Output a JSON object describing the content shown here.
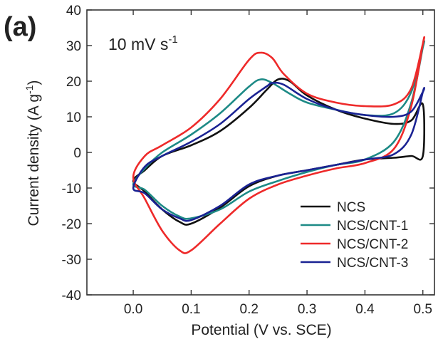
{
  "panel_label": "(a)",
  "annotation": {
    "main": "10 mV s",
    "sup": "-1"
  },
  "chart_data": {
    "type": "line",
    "xlabel": "Potential (V vs. SCE)",
    "ylabel_main": "Current density (A g",
    "ylabel_sup": "-1",
    "ylabel_close": ")",
    "xlim": [
      -0.08,
      0.52
    ],
    "ylim": [
      -40,
      40
    ],
    "x_ticks": [
      0.0,
      0.1,
      0.2,
      0.3,
      0.4,
      0.5
    ],
    "x_tick_labels": [
      "0.0",
      "0.1",
      "0.2",
      "0.3",
      "0.4",
      "0.5"
    ],
    "y_ticks": [
      -40,
      -30,
      -20,
      -10,
      0,
      10,
      20,
      30,
      40
    ],
    "y_tick_labels": [
      "-40",
      "-30",
      "-20",
      "-10",
      "0",
      "10",
      "20",
      "30",
      "40"
    ],
    "grid": false,
    "legend_position": "bottom-right",
    "series": [
      {
        "name": "NCS",
        "color": "#111111",
        "x": [
          0.0,
          0.02,
          0.05,
          0.1,
          0.15,
          0.2,
          0.23,
          0.25,
          0.27,
          0.3,
          0.35,
          0.4,
          0.45,
          0.48,
          0.5,
          0.5,
          0.48,
          0.45,
          0.4,
          0.35,
          0.3,
          0.25,
          0.2,
          0.15,
          0.1,
          0.08,
          0.05,
          0.02,
          0.0
        ],
        "y": [
          -8,
          -5,
          -1,
          2,
          6,
          12.5,
          17.5,
          20.5,
          20,
          16,
          12,
          9.5,
          8,
          9,
          13.5,
          -1,
          -1,
          -1.5,
          -2,
          -3.5,
          -5,
          -6.5,
          -9.5,
          -15.5,
          -20,
          -19.5,
          -16,
          -11,
          -8
        ]
      },
      {
        "name": "NCS/CNT-1",
        "color": "#1d8a86",
        "x": [
          0.0,
          0.02,
          0.05,
          0.1,
          0.15,
          0.2,
          0.22,
          0.24,
          0.27,
          0.3,
          0.35,
          0.4,
          0.45,
          0.48,
          0.5,
          0.5,
          0.48,
          0.45,
          0.4,
          0.35,
          0.3,
          0.25,
          0.2,
          0.15,
          0.1,
          0.08,
          0.05,
          0.02,
          0.0
        ],
        "y": [
          -9,
          -4.5,
          0,
          5,
          11,
          18.5,
          20.5,
          19.5,
          16.5,
          14,
          12,
          10.5,
          11,
          17,
          29.5,
          29.5,
          14,
          3,
          -2,
          -3.5,
          -5.5,
          -8,
          -11,
          -16,
          -18.5,
          -18,
          -15,
          -10.5,
          -9
        ]
      },
      {
        "name": "NCS/CNT-2",
        "color": "#ee2a2a",
        "x": [
          0.0,
          0.02,
          0.05,
          0.1,
          0.15,
          0.2,
          0.22,
          0.24,
          0.26,
          0.3,
          0.35,
          0.4,
          0.45,
          0.48,
          0.5,
          0.5,
          0.48,
          0.45,
          0.4,
          0.35,
          0.3,
          0.25,
          0.2,
          0.15,
          0.1,
          0.08,
          0.05,
          0.02,
          0.0
        ],
        "y": [
          -7,
          -1,
          2,
          7,
          15,
          26,
          28,
          26.5,
          22,
          16.5,
          14,
          13,
          13.5,
          18,
          30.5,
          30.5,
          13,
          1,
          -3,
          -4.5,
          -6.5,
          -9,
          -13,
          -20,
          -27.5,
          -27.5,
          -22,
          -13,
          -7
        ]
      },
      {
        "name": "NCS/CNT-3",
        "color": "#1a2293",
        "x": [
          0.0,
          0.02,
          0.05,
          0.1,
          0.15,
          0.2,
          0.23,
          0.24,
          0.26,
          0.3,
          0.35,
          0.4,
          0.45,
          0.48,
          0.5,
          0.5,
          0.48,
          0.45,
          0.4,
          0.35,
          0.3,
          0.25,
          0.2,
          0.15,
          0.1,
          0.08,
          0.05,
          0.02,
          0.0
        ],
        "y": [
          -10,
          -4,
          -1,
          3,
          8,
          15,
          18.5,
          19.5,
          19,
          15,
          12,
          10.5,
          10,
          11.5,
          17,
          17,
          5,
          -0.5,
          -2,
          -3.5,
          -5,
          -6.5,
          -9,
          -15,
          -19,
          -18.5,
          -16,
          -11.5,
          -10
        ]
      }
    ]
  }
}
